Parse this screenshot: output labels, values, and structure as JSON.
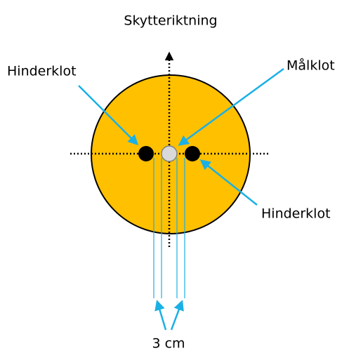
{
  "title": "Skytteriktning",
  "labels": {
    "left_obstacle": "Hinderklot",
    "target": "Målklot",
    "right_obstacle": "Hinderklot",
    "distance": "3 cm"
  }
}
